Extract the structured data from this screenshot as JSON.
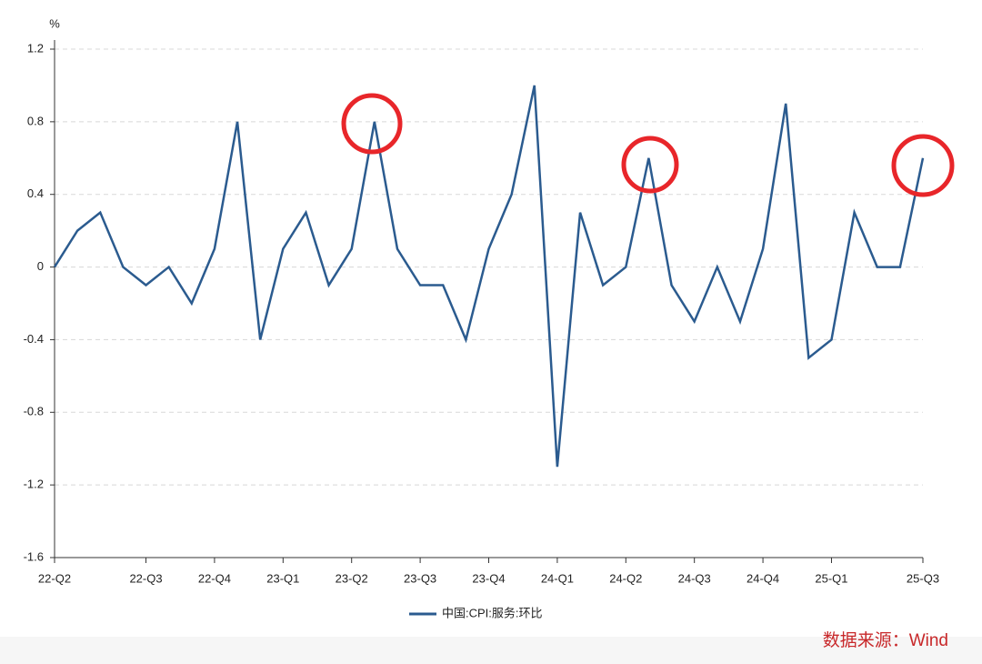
{
  "chart_data": {
    "type": "line",
    "y_unit": "%",
    "categories": [
      "22-Q2",
      null,
      null,
      null,
      "22-Q3",
      null,
      null,
      "22-Q4",
      null,
      null,
      "23-Q1",
      null,
      null,
      "23-Q2",
      null,
      null,
      "23-Q3",
      null,
      null,
      "23-Q4",
      null,
      null,
      "24-Q1",
      null,
      null,
      "24-Q2",
      null,
      null,
      "24-Q3",
      null,
      null,
      "24-Q4",
      null,
      null,
      "25-Q1",
      null,
      null,
      null,
      "25-Q3"
    ],
    "series": [
      {
        "name": "中国:CPI:服务:环比",
        "color": "#2b5b8f",
        "values": [
          0,
          0.2,
          0.3,
          0,
          -0.1,
          0,
          -0.2,
          0.1,
          0.8,
          -0.4,
          0.1,
          0.3,
          -0.1,
          0.1,
          0.8,
          0.1,
          -0.1,
          -0.1,
          -0.4,
          0.1,
          0.4,
          1.0,
          -1.1,
          0.3,
          -0.1,
          0,
          0.6,
          -0.1,
          -0.3,
          0,
          -0.3,
          0.1,
          0.9,
          -0.5,
          -0.4,
          0.3,
          0,
          0,
          0.6
        ]
      }
    ],
    "ylim": [
      -1.6,
      1.2
    ],
    "yticks": [
      -1.6,
      -1.2,
      -0.8,
      -0.4,
      0,
      0.4,
      0.8,
      1.2
    ],
    "grid": true,
    "legend": "bottom",
    "source": "数据来源：Wind"
  }
}
